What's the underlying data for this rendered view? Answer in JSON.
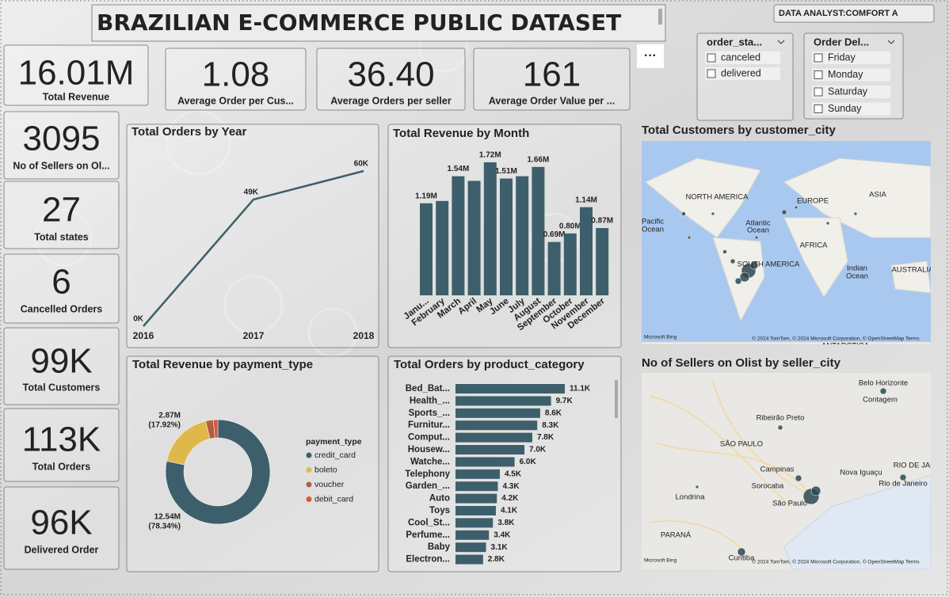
{
  "header": {
    "title": "BRAZILIAN E-COMMERCE PUBLIC DATASET",
    "author": "DATA ANALYST:COMFORT A"
  },
  "kpis": [
    {
      "value": "16.01M",
      "label": "Total Revenue"
    },
    {
      "value": "1.08",
      "label": "Average Order per Cus..."
    },
    {
      "value": "36.40",
      "label": "Average Orders per seller"
    },
    {
      "value": "161",
      "label": "Average Order Value per ..."
    },
    {
      "value": "3095",
      "label": "No of Sellers on Ol..."
    },
    {
      "value": "27",
      "label": "Total states"
    },
    {
      "value": "6",
      "label": "Cancelled Orders"
    },
    {
      "value": "99K",
      "label": "Total Customers"
    },
    {
      "value": "113K",
      "label": "Total Orders"
    },
    {
      "value": "96K",
      "label": "Delivered Order"
    }
  ],
  "slicers": [
    {
      "title": "order_sta...",
      "items": [
        "canceled",
        "delivered"
      ]
    },
    {
      "title": "Order Del...",
      "items": [
        "Friday",
        "Monday",
        "Saturday",
        "Sunday"
      ]
    }
  ],
  "chart_data": [
    {
      "type": "line",
      "title": "Total Orders by Year",
      "categories": [
        "2016",
        "2017",
        "2018"
      ],
      "values": [
        0,
        49,
        60
      ],
      "value_labels": [
        "0K",
        "49K",
        "60K"
      ],
      "color": "#3d5f6b"
    },
    {
      "type": "bar",
      "title": "Total Revenue by Month",
      "categories": [
        "Janu...",
        "February",
        "March",
        "April",
        "May",
        "June",
        "July",
        "August",
        "September",
        "October",
        "November",
        "December"
      ],
      "values": [
        1.19,
        1.22,
        1.54,
        1.48,
        1.72,
        1.51,
        1.54,
        1.66,
        0.69,
        0.8,
        1.14,
        0.87
      ],
      "value_labels": [
        "1.19M",
        null,
        "1.54M",
        null,
        "1.72M",
        "1.51M",
        null,
        "1.66M",
        "0.69M",
        "0.80M",
        "1.14M",
        "0.87M"
      ],
      "color": "#3d5f6b"
    },
    {
      "type": "donut",
      "title": "Total Revenue by payment_type",
      "legend_title": "payment_type",
      "categories": [
        "credit_card",
        "boleto",
        "voucher",
        "debit_card"
      ],
      "values": [
        12.54,
        2.87,
        0.38,
        0.22
      ],
      "value_labels": [
        "12.54M",
        "2.87M",
        null,
        null
      ],
      "percent_labels": [
        "(78.34%)",
        "(17.92%)",
        null,
        null
      ],
      "colors": [
        "#3d5f6b",
        "#e0b84a",
        "#b0603f",
        "#d9583b"
      ]
    },
    {
      "type": "hbar",
      "title": "Total Orders by product_category",
      "categories": [
        "Bed_Bat...",
        "Health_...",
        "Sports_...",
        "Furnitur...",
        "Comput...",
        "Housew...",
        "Watche...",
        "Telephony",
        "Garden_...",
        "Auto",
        "Toys",
        "Cool_St...",
        "Perfume...",
        "Baby",
        "Electron..."
      ],
      "values": [
        11.1,
        9.7,
        8.6,
        8.3,
        7.8,
        7.0,
        6.0,
        4.5,
        4.3,
        4.2,
        4.1,
        3.8,
        3.4,
        3.1,
        2.8
      ],
      "value_labels": [
        "11.1K",
        "9.7K",
        "8.6K",
        "8.3K",
        "7.8K",
        "7.0K",
        "6.0K",
        "4.5K",
        "4.3K",
        "4.2K",
        "4.1K",
        "3.8K",
        "3.4K",
        "3.1K",
        "2.8K"
      ],
      "color": "#3d5f6b"
    }
  ],
  "maps": [
    {
      "title": "Total Customers by customer_city",
      "labels": [
        "NORTH AMERICA",
        "EUROPE",
        "ASIA",
        "Pacific",
        "Ocean",
        "Atlantic",
        "Ocean",
        "AFRICA",
        "SOUTH AMERICA",
        "Indian",
        "Ocean",
        "AUSTRALIA",
        "ANTARCTICA"
      ],
      "attribution": "© 2024 TomTom, © 2024 Microsoft Corporation, © OpenStreetMap Terms",
      "provider": "Microsoft Bing"
    },
    {
      "title": "No of Sellers on Olist by seller_city",
      "labels": [
        "Belo Horizonte",
        "Contagem",
        "Ribeirão Preto",
        "SÃO PAULO",
        "Campinas",
        "Nova Iguaçu",
        "Sorocaba",
        "Rio de Janeiro",
        "Londrina",
        "São Paulo",
        "PARANÁ",
        "Curitiba",
        "RIO DE JANEIRO"
      ],
      "attribution": "© 2024 TomTom, © 2024 Microsoft Corporation, © OpenStreetMap Terms",
      "provider": "Microsoft Bing"
    }
  ]
}
